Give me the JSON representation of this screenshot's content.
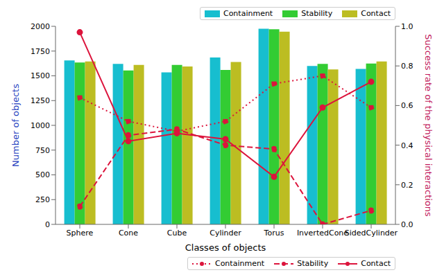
{
  "chart_data": {
    "type": "bar",
    "x_label": "Classes of objects",
    "y_label": "Number of objects",
    "y2_label": "Success rate of the physical interactions",
    "categories": [
      "Sphere",
      "Cone",
      "Cube",
      "Cylinder",
      "Torus",
      "InvertedCone",
      "SidedCylinder"
    ],
    "ylim": [
      0,
      2000
    ],
    "yticks": [
      0,
      250,
      500,
      750,
      1000,
      1250,
      1500,
      1750,
      2000
    ],
    "y2lim": [
      0,
      1
    ],
    "y2ticks": [
      {
        "value": 0,
        "label": "0.0"
      },
      0.2,
      0.4,
      0.6,
      0.8,
      {
        "value": 1,
        "label": "1.0"
      }
    ],
    "grid": false,
    "series": [
      {
        "name": "Containment",
        "type": "bar",
        "color": "#17becf",
        "legend": "upper right",
        "values": [
          1655,
          1620,
          1535,
          1685,
          1975,
          1600,
          1570
        ]
      },
      {
        "name": "Stability",
        "type": "bar",
        "color": "#33cc33",
        "legend": "upper right",
        "values": [
          1635,
          1555,
          1610,
          1560,
          1970,
          1620,
          1625
        ]
      },
      {
        "name": "Contact",
        "type": "bar",
        "color": "#bcbd22",
        "legend": "upper right",
        "values": [
          1645,
          1610,
          1595,
          1640,
          1945,
          1565,
          1645
        ]
      },
      {
        "name": "Containment",
        "type": "line",
        "axis": "y2",
        "color": "#dc143c",
        "line_style": "dotted",
        "marker": "o",
        "legend": "lower right",
        "values": [
          0.64,
          0.52,
          0.47,
          0.52,
          0.71,
          0.75,
          0.59
        ]
      },
      {
        "name": "Stability",
        "type": "line",
        "axis": "y2",
        "color": "#dc143c",
        "line_style": "dashed",
        "marker": "o",
        "legend": "lower right",
        "values": [
          0.09,
          0.45,
          0.48,
          0.4,
          0.38,
          0,
          0.07
        ]
      },
      {
        "name": "Contact",
        "type": "line",
        "axis": "y2",
        "color": "#dc143c",
        "line_style": "solid",
        "marker": "o",
        "legend": "lower right",
        "values": [
          0.97,
          0.42,
          0.46,
          0.43,
          0.24,
          0.59,
          0.72
        ]
      }
    ]
  }
}
